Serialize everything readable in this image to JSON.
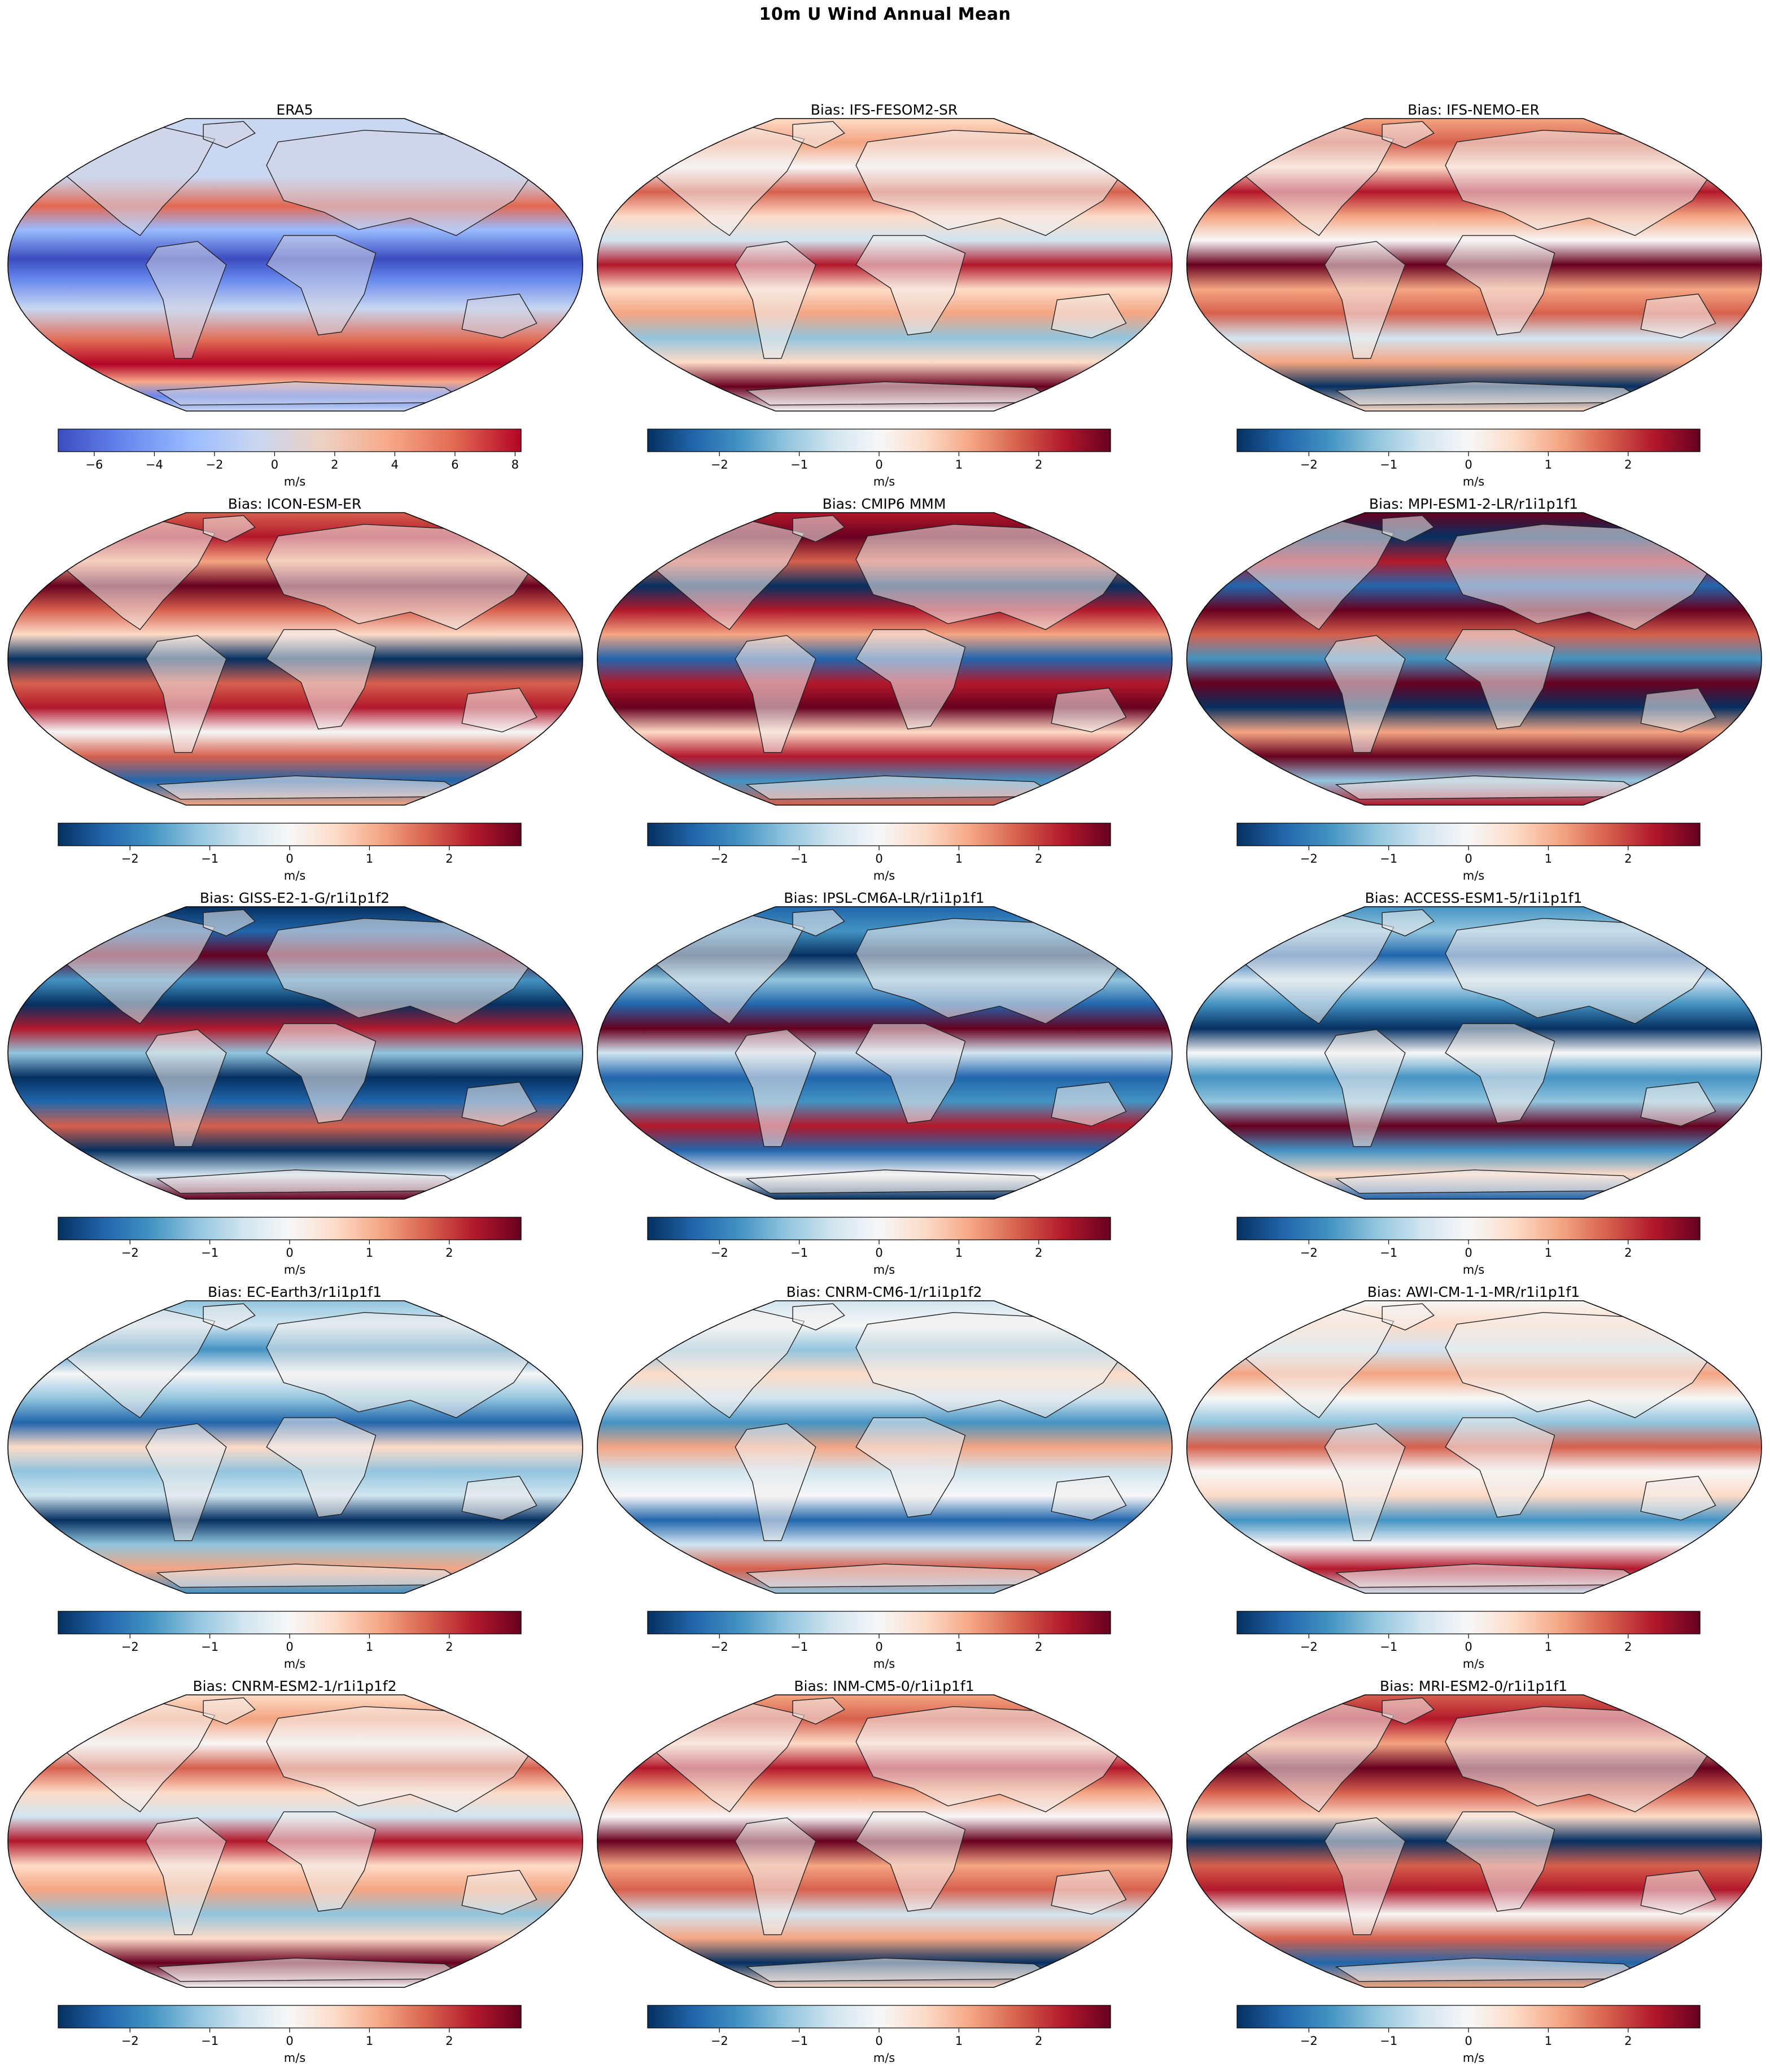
{
  "figure": {
    "title": "10m U Wind Annual Mean"
  },
  "units": "m/s",
  "colors": {
    "coolwarm": [
      "#3b4cc0",
      "#6788ee",
      "#9abbff",
      "#c9d7f0",
      "#edd1c2",
      "#f7a889",
      "#e26952",
      "#b40426"
    ],
    "rdbu_r": [
      "#053061",
      "#2166ac",
      "#4393c3",
      "#92c5de",
      "#d1e5f0",
      "#f7f7f7",
      "#fddbc7",
      "#f4a582",
      "#d6604d",
      "#b2182b",
      "#67001f"
    ]
  },
  "panels": [
    {
      "title": "ERA5",
      "cmap": "coolwarm",
      "vmin": -7.2,
      "vmax": 8.2,
      "ticks": [
        -6,
        -4,
        -2,
        0,
        2,
        4,
        6,
        8
      ]
    },
    {
      "title": "Bias: IFS-FESOM2-SR",
      "cmap": "rdbu_r",
      "vmin": -2.9,
      "vmax": 2.9,
      "ticks": [
        -2,
        -1,
        0,
        1,
        2
      ]
    },
    {
      "title": "Bias: IFS-NEMO-ER",
      "cmap": "rdbu_r",
      "vmin": -2.9,
      "vmax": 2.9,
      "ticks": [
        -2,
        -1,
        0,
        1,
        2
      ]
    },
    {
      "title": "Bias: ICON-ESM-ER",
      "cmap": "rdbu_r",
      "vmin": -2.9,
      "vmax": 2.9,
      "ticks": [
        -2,
        -1,
        0,
        1,
        2
      ]
    },
    {
      "title": "Bias: CMIP6 MMM",
      "cmap": "rdbu_r",
      "vmin": -2.9,
      "vmax": 2.9,
      "ticks": [
        -2,
        -1,
        0,
        1,
        2
      ]
    },
    {
      "title": "Bias: MPI-ESM1-2-LR/r1i1p1f1",
      "cmap": "rdbu_r",
      "vmin": -2.9,
      "vmax": 2.9,
      "ticks": [
        -2,
        -1,
        0,
        1,
        2
      ]
    },
    {
      "title": "Bias: GISS-E2-1-G/r1i1p1f2",
      "cmap": "rdbu_r",
      "vmin": -2.9,
      "vmax": 2.9,
      "ticks": [
        -2,
        -1,
        0,
        1,
        2
      ]
    },
    {
      "title": "Bias: IPSL-CM6A-LR/r1i1p1f1",
      "cmap": "rdbu_r",
      "vmin": -2.9,
      "vmax": 2.9,
      "ticks": [
        -2,
        -1,
        0,
        1,
        2
      ]
    },
    {
      "title": "Bias: ACCESS-ESM1-5/r1i1p1f1",
      "cmap": "rdbu_r",
      "vmin": -2.9,
      "vmax": 2.9,
      "ticks": [
        -2,
        -1,
        0,
        1,
        2
      ]
    },
    {
      "title": "Bias: EC-Earth3/r1i1p1f1",
      "cmap": "rdbu_r",
      "vmin": -2.9,
      "vmax": 2.9,
      "ticks": [
        -2,
        -1,
        0,
        1,
        2
      ]
    },
    {
      "title": "Bias: CNRM-CM6-1/r1i1p1f2",
      "cmap": "rdbu_r",
      "vmin": -2.9,
      "vmax": 2.9,
      "ticks": [
        -2,
        -1,
        0,
        1,
        2
      ]
    },
    {
      "title": "Bias: AWI-CM-1-1-MR/r1i1p1f1",
      "cmap": "rdbu_r",
      "vmin": -2.9,
      "vmax": 2.9,
      "ticks": [
        -2,
        -1,
        0,
        1,
        2
      ]
    },
    {
      "title": "Bias: CNRM-ESM2-1/r1i1p1f2",
      "cmap": "rdbu_r",
      "vmin": -2.9,
      "vmax": 2.9,
      "ticks": [
        -2,
        -1,
        0,
        1,
        2
      ]
    },
    {
      "title": "Bias: INM-CM5-0/r1i1p1f1",
      "cmap": "rdbu_r",
      "vmin": -2.9,
      "vmax": 2.9,
      "ticks": [
        -2,
        -1,
        0,
        1,
        2
      ]
    },
    {
      "title": "Bias: MRI-ESM2-0/r1i1p1f1",
      "cmap": "rdbu_r",
      "vmin": -2.9,
      "vmax": 2.9,
      "ticks": [
        -2,
        -1,
        0,
        1,
        2
      ]
    }
  ]
}
